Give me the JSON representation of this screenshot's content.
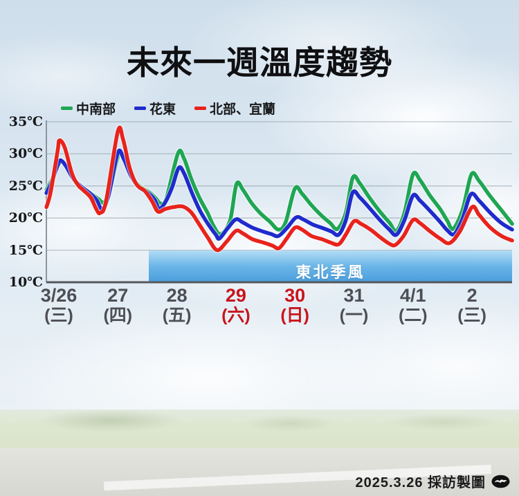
{
  "title": "未來一週溫度趨勢",
  "legend": {
    "items": [
      {
        "label": "中南部",
        "color": "#1fa653"
      },
      {
        "label": "花東",
        "color": "#1f2bcc"
      },
      {
        "label": "北部、宜蘭",
        "color": "#e8231c"
      }
    ]
  },
  "y_axis": {
    "unit": "℃",
    "min": 10,
    "max": 35,
    "ticks": [
      {
        "value": 35,
        "label": "35℃"
      },
      {
        "value": 30,
        "label": "30℃"
      },
      {
        "value": 25,
        "label": "25℃"
      },
      {
        "value": 20,
        "label": "20℃"
      },
      {
        "value": 15,
        "label": "15℃"
      },
      {
        "value": 10,
        "label": "10℃"
      }
    ]
  },
  "x_axis": {
    "normal_color": "#4d4f54",
    "highlight_color": "#c9141c",
    "days": [
      {
        "date": "3/26",
        "weekday": "(三)",
        "highlight": false
      },
      {
        "date": "27",
        "weekday": "(四)",
        "highlight": false
      },
      {
        "date": "28",
        "weekday": "(五)",
        "highlight": false
      },
      {
        "date": "29",
        "weekday": "(六)",
        "highlight": true
      },
      {
        "date": "30",
        "weekday": "(日)",
        "highlight": true
      },
      {
        "date": "31",
        "weekday": "(一)",
        "highlight": false
      },
      {
        "date": "4/1",
        "weekday": "(二)",
        "highlight": false
      },
      {
        "date": "2",
        "weekday": "(三)",
        "highlight": false
      }
    ]
  },
  "banner": {
    "text": "東北季風",
    "gradient": [
      "#aedbf5",
      "#5fb0e6",
      "#3d97da"
    ]
  },
  "footer": {
    "credit": "2025.3.26 採訪製圖",
    "logo": "setn-news-logo"
  },
  "chart_data": {
    "type": "line",
    "title": "未來一週溫度趨勢",
    "ylabel": "℃",
    "ylim": [
      10,
      35
    ],
    "grid": true,
    "legend_position": "top-left",
    "categories": [
      "3/26",
      "27",
      "28",
      "29",
      "30",
      "31",
      "4/1",
      "2"
    ],
    "x_unit": "day_index: 0 = 3/26 label center, fractional values = intra-day time",
    "annotation": {
      "text": "東北季風",
      "from_day": 1.52,
      "to_day": 7.68,
      "temp_band": [
        10,
        15
      ]
    },
    "series": [
      {
        "name": "中南部",
        "color": "#1fa653",
        "points": [
          [
            -0.21,
            24.4
          ],
          [
            -0.12,
            26.0
          ],
          [
            0.0,
            28.4
          ],
          [
            0.06,
            28.8
          ],
          [
            0.16,
            27.6
          ],
          [
            0.28,
            25.6
          ],
          [
            0.42,
            24.6
          ],
          [
            0.56,
            23.7
          ],
          [
            0.68,
            22.9
          ],
          [
            0.76,
            22.4
          ],
          [
            0.86,
            24.2
          ],
          [
            1.02,
            30.0
          ],
          [
            1.12,
            28.9
          ],
          [
            1.24,
            26.4
          ],
          [
            1.38,
            24.9
          ],
          [
            1.52,
            24.1
          ],
          [
            1.64,
            23.1
          ],
          [
            1.72,
            22.3
          ],
          [
            1.82,
            23.0
          ],
          [
            2.02,
            30.1
          ],
          [
            2.12,
            29.3
          ],
          [
            2.24,
            26.2
          ],
          [
            2.38,
            23.2
          ],
          [
            2.52,
            20.8
          ],
          [
            2.62,
            18.8
          ],
          [
            2.74,
            17.5
          ],
          [
            2.9,
            19.6
          ],
          [
            3.01,
            25.3
          ],
          [
            3.12,
            24.4
          ],
          [
            3.26,
            22.4
          ],
          [
            3.42,
            20.7
          ],
          [
            3.58,
            19.4
          ],
          [
            3.72,
            18.2
          ],
          [
            3.84,
            19.3
          ],
          [
            4.0,
            24.6
          ],
          [
            4.12,
            23.8
          ],
          [
            4.28,
            22.0
          ],
          [
            4.46,
            20.3
          ],
          [
            4.6,
            19.2
          ],
          [
            4.72,
            18.3
          ],
          [
            4.86,
            20.8
          ],
          [
            4.98,
            26.3
          ],
          [
            5.1,
            25.4
          ],
          [
            5.26,
            23.2
          ],
          [
            5.44,
            21.0
          ],
          [
            5.6,
            19.3
          ],
          [
            5.72,
            18.0
          ],
          [
            5.86,
            21.0
          ],
          [
            6.0,
            26.8
          ],
          [
            6.12,
            25.9
          ],
          [
            6.28,
            23.6
          ],
          [
            6.46,
            21.4
          ],
          [
            6.58,
            19.6
          ],
          [
            6.68,
            18.3
          ],
          [
            6.84,
            21.3
          ],
          [
            6.99,
            26.8
          ],
          [
            7.12,
            25.8
          ],
          [
            7.3,
            23.5
          ],
          [
            7.5,
            21.2
          ],
          [
            7.68,
            19.1
          ]
        ]
      },
      {
        "name": "花東",
        "color": "#1f2bcc",
        "points": [
          [
            -0.21,
            23.9
          ],
          [
            -0.12,
            25.6
          ],
          [
            -0.02,
            28.2
          ],
          [
            0.03,
            29.0
          ],
          [
            0.12,
            28.1
          ],
          [
            0.24,
            26.2
          ],
          [
            0.38,
            24.9
          ],
          [
            0.52,
            23.9
          ],
          [
            0.64,
            22.8
          ],
          [
            0.73,
            21.4
          ],
          [
            0.84,
            23.4
          ],
          [
            1.0,
            30.2
          ],
          [
            1.1,
            29.2
          ],
          [
            1.22,
            26.6
          ],
          [
            1.36,
            24.8
          ],
          [
            1.5,
            24.0
          ],
          [
            1.62,
            22.9
          ],
          [
            1.7,
            21.5
          ],
          [
            1.8,
            22.4
          ],
          [
            1.92,
            24.8
          ],
          [
            2.03,
            27.8
          ],
          [
            2.12,
            27.0
          ],
          [
            2.26,
            23.8
          ],
          [
            2.4,
            21.0
          ],
          [
            2.54,
            18.9
          ],
          [
            2.66,
            17.4
          ],
          [
            2.72,
            16.8
          ],
          [
            2.86,
            18.4
          ],
          [
            3.0,
            19.8
          ],
          [
            3.12,
            19.3
          ],
          [
            3.28,
            18.5
          ],
          [
            3.46,
            17.9
          ],
          [
            3.6,
            17.5
          ],
          [
            3.72,
            17.2
          ],
          [
            3.86,
            18.4
          ],
          [
            4.02,
            20.1
          ],
          [
            4.14,
            19.8
          ],
          [
            4.3,
            19.0
          ],
          [
            4.48,
            18.4
          ],
          [
            4.62,
            17.9
          ],
          [
            4.74,
            17.4
          ],
          [
            4.86,
            19.6
          ],
          [
            4.98,
            24.0
          ],
          [
            5.1,
            23.2
          ],
          [
            5.26,
            21.6
          ],
          [
            5.44,
            19.7
          ],
          [
            5.6,
            18.2
          ],
          [
            5.72,
            17.4
          ],
          [
            5.86,
            19.8
          ],
          [
            6.0,
            23.5
          ],
          [
            6.12,
            22.7
          ],
          [
            6.28,
            21.2
          ],
          [
            6.46,
            19.4
          ],
          [
            6.58,
            18.1
          ],
          [
            6.7,
            17.5
          ],
          [
            6.84,
            19.9
          ],
          [
            6.98,
            23.7
          ],
          [
            7.12,
            22.7
          ],
          [
            7.3,
            20.9
          ],
          [
            7.5,
            19.2
          ],
          [
            7.68,
            18.2
          ]
        ]
      },
      {
        "name": "北部、宜蘭",
        "color": "#e8231c",
        "points": [
          [
            -0.21,
            21.7
          ],
          [
            -0.14,
            24.0
          ],
          [
            -0.02,
            30.5
          ],
          [
            0.01,
            32.1
          ],
          [
            0.1,
            31.0
          ],
          [
            0.22,
            27.0
          ],
          [
            0.32,
            25.2
          ],
          [
            0.42,
            24.3
          ],
          [
            0.54,
            23.2
          ],
          [
            0.64,
            21.3
          ],
          [
            0.7,
            20.8
          ],
          [
            0.8,
            22.6
          ],
          [
            1.0,
            33.5
          ],
          [
            1.09,
            32.2
          ],
          [
            1.2,
            27.8
          ],
          [
            1.32,
            25.2
          ],
          [
            1.46,
            24.2
          ],
          [
            1.58,
            22.6
          ],
          [
            1.68,
            21.0
          ],
          [
            1.8,
            21.4
          ],
          [
            1.94,
            21.7
          ],
          [
            2.1,
            21.8
          ],
          [
            2.24,
            20.9
          ],
          [
            2.38,
            19.0
          ],
          [
            2.52,
            17.0
          ],
          [
            2.68,
            15.0
          ],
          [
            2.84,
            16.3
          ],
          [
            3.0,
            18.0
          ],
          [
            3.12,
            17.6
          ],
          [
            3.28,
            16.7
          ],
          [
            3.46,
            16.2
          ],
          [
            3.62,
            15.7
          ],
          [
            3.73,
            15.3
          ],
          [
            3.86,
            16.8
          ],
          [
            4.0,
            18.5
          ],
          [
            4.12,
            18.2
          ],
          [
            4.28,
            17.2
          ],
          [
            4.46,
            16.7
          ],
          [
            4.6,
            16.2
          ],
          [
            4.74,
            15.9
          ],
          [
            4.86,
            17.4
          ],
          [
            5.0,
            19.5
          ],
          [
            5.12,
            19.1
          ],
          [
            5.28,
            18.2
          ],
          [
            5.46,
            16.9
          ],
          [
            5.6,
            16.0
          ],
          [
            5.7,
            15.8
          ],
          [
            5.84,
            17.2
          ],
          [
            6.0,
            19.7
          ],
          [
            6.12,
            19.2
          ],
          [
            6.28,
            18.0
          ],
          [
            6.46,
            16.8
          ],
          [
            6.62,
            16.1
          ],
          [
            6.8,
            18.0
          ],
          [
            7.0,
            21.7
          ],
          [
            7.12,
            20.5
          ],
          [
            7.3,
            18.6
          ],
          [
            7.5,
            17.2
          ],
          [
            7.68,
            16.5
          ]
        ]
      }
    ]
  }
}
